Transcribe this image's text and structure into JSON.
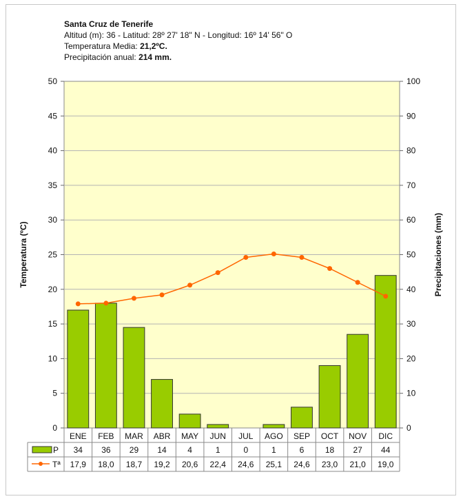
{
  "header": {
    "title": "Santa Cruz de Tenerife",
    "location_line": "Altitud (m): 36 -  Latitud: 28º 27' 18\" N -  Longitud: 16º 14' 56\" O",
    "temp_label": "Temperatura Media: ",
    "temp_value": "21,2ºC.",
    "precip_label": "Precipitación anual: ",
    "precip_value": "214 mm."
  },
  "chart_data": {
    "type": "bar",
    "categories": [
      "ENE",
      "FEB",
      "MAR",
      "ABR",
      "MAY",
      "JUN",
      "JUL",
      "AGO",
      "SEP",
      "OCT",
      "NOV",
      "DIC"
    ],
    "series": [
      {
        "name": "P",
        "type": "bar",
        "axis": "right",
        "values": [
          34,
          36,
          29,
          14,
          4,
          1,
          0,
          1,
          6,
          18,
          27,
          44
        ],
        "labels": [
          "34",
          "36",
          "29",
          "14",
          "4",
          "1",
          "0",
          "1",
          "6",
          "18",
          "27",
          "44"
        ],
        "color": "#99cc00"
      },
      {
        "name": "Tª",
        "type": "line",
        "axis": "left",
        "values": [
          17.9,
          18.0,
          18.7,
          19.2,
          20.6,
          22.4,
          24.6,
          25.1,
          24.6,
          23.0,
          21.0,
          19.0
        ],
        "labels": [
          "17,9",
          "18,0",
          "18,7",
          "19,2",
          "20,6",
          "22,4",
          "24,6",
          "25,1",
          "24,6",
          "23,0",
          "21,0",
          "19,0"
        ],
        "color": "#ff6600"
      }
    ],
    "ylabel_left": "Temperatura (ºC)",
    "ylabel_right": "Precipitaciones (mm)",
    "ylim_left": [
      0,
      50
    ],
    "ylim_right": [
      0,
      100
    ],
    "yticks_left": [
      "0",
      "5",
      "10",
      "15",
      "20",
      "25",
      "30",
      "35",
      "40",
      "45",
      "50"
    ],
    "yticks_right": [
      "0",
      "10",
      "20",
      "30",
      "40",
      "50",
      "60",
      "70",
      "80",
      "90",
      "100"
    ],
    "grid": true,
    "plot_background": "#ffffcc",
    "legend": "data-table"
  }
}
